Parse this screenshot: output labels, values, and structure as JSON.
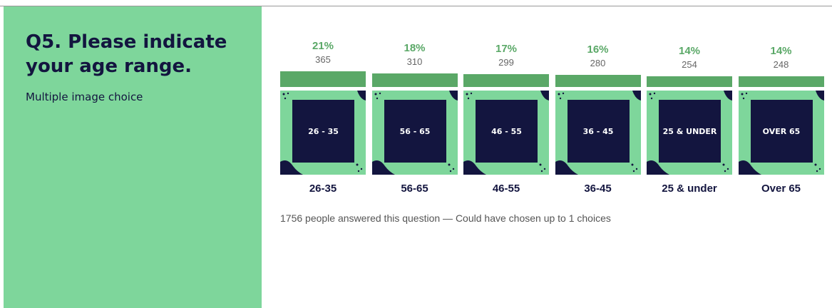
{
  "question": {
    "title": "Q5. Please indicate your age range.",
    "subtitle": "Multiple image choice"
  },
  "chart_data": {
    "type": "bar",
    "categories": [
      "26-35",
      "56-65",
      "46-55",
      "36-45",
      "25 & under",
      "Over 65"
    ],
    "image_labels": [
      "26 - 35",
      "56 - 65",
      "46 - 55",
      "36 - 45",
      "25 & UNDER",
      "OVER 65"
    ],
    "values": [
      21,
      18,
      17,
      16,
      14,
      14
    ],
    "value_labels": [
      "21%",
      "18%",
      "17%",
      "16%",
      "14%",
      "14%"
    ],
    "counts": [
      365,
      310,
      299,
      280,
      254,
      248
    ],
    "color": "#5aa867"
  },
  "footer": "1756 people answered this question — Could have chosen up to 1 choices"
}
